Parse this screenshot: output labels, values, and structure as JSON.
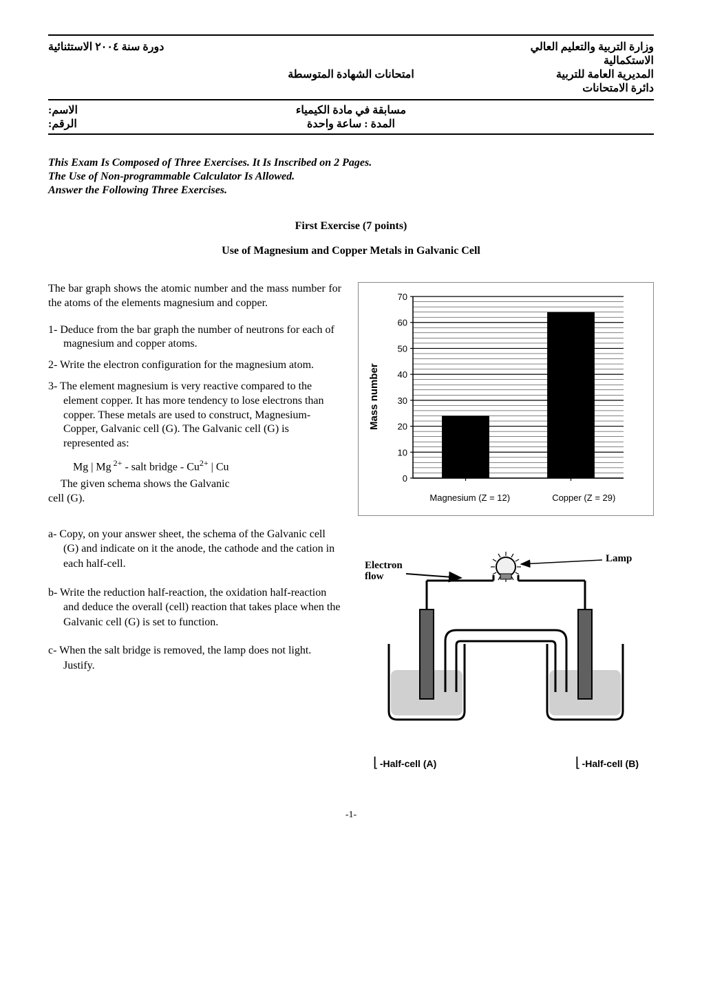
{
  "header": {
    "ministry_line1": "وزارة التربية والتعليم العالي",
    "ministry_line2": "الاستكمالية",
    "ministry_line3": "المديرية العامة للتربية",
    "ministry_line4": "دائرة الامتحانات",
    "session": "دورة سنة ٢٠٠٤ الاستثنائية",
    "exam_title": "امتحانات الشهادة المتوسطة",
    "subject": "مسابقة في مادة الكيمياء",
    "duration": "المدة : ساعة واحدة",
    "name_label": "الاسم:",
    "number_label": "الرقم:"
  },
  "instructions": {
    "line1": "This Exam Is Composed of Three Exercises. It Is Inscribed on 2 Pages.",
    "line2": "The Use of Non-programmable Calculator Is Allowed.",
    "line3": "Answer the Following Three Exercises."
  },
  "exercise": {
    "heading": "First Exercise (7 points)",
    "subheading": "Use of Magnesium and Copper Metals in Galvanic Cell",
    "intro": "The bar graph shows the atomic number and the mass number for the atoms of the elements magnesium and copper.",
    "q1": "1- Deduce from the bar graph the number of neutrons for each of magnesium and copper atoms.",
    "q2": "2- Write the electron configuration for the magnesium atom.",
    "q3a": "3- The element magnesium is very reactive compared  to the element copper. It has more tendency to lose electrons than copper. These metals are used to construct,  Magnesium-Copper, Galvanic cell (G). The Galvanic cell (G)  is represented as:",
    "formula_pre": "Mg | Mg",
    "formula_mid": "   - salt bridge -   Cu",
    "formula_post": "  | Cu",
    "schema_line1": "    The given schema shows the Galvanic",
    "schema_line2": "cell (G).",
    "qa": "a- Copy, on your answer sheet, the schema of the Galvanic cell (G) and indicate on it the anode, the cathode and the cation in each half-cell.",
    "qb": "b- Write the reduction half-reaction, the oxidation half-reaction and deduce the overall (cell) reaction that takes place when the Galvanic cell (G) is set to function.",
    "qc": "c- When the salt bridge is removed, the lamp does not light. Justify."
  },
  "chart": {
    "type": "bar",
    "y_label": "Mass number",
    "categories": [
      "Magnesium (Z = 12)",
      "Copper (Z = 29)"
    ],
    "values": [
      24,
      64
    ],
    "bar_colors": [
      "#000000",
      "#000000"
    ],
    "ylim": [
      0,
      70
    ],
    "ytick_step": 10,
    "background_color": "#ffffff",
    "grid_color": "#000000",
    "axis_color": "#000000",
    "bar_width": 0.45,
    "label_fontsize": 13,
    "ylabel_fontsize": 15,
    "ylabel_fontweight": "bold",
    "tick_fontfamily": "Arial"
  },
  "galvanic": {
    "electron_flow": "Electron flow",
    "lamp": "Lamp",
    "half_a": "-Half-cell (A)",
    "half_b": "-Half-cell (B)"
  },
  "pagenum": "-1-"
}
